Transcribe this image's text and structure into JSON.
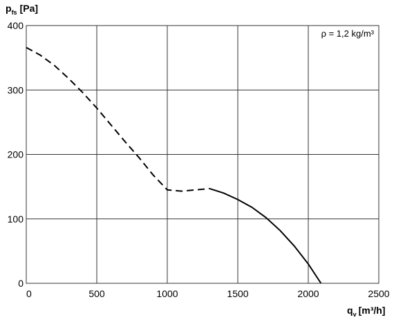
{
  "chart_data": {
    "type": "line",
    "y_label": {
      "base": "p",
      "sub": "fs",
      "unit": "[Pa]"
    },
    "x_label": {
      "base": "q",
      "sub": "v",
      "unit": "[m³/h]"
    },
    "annotation": "ρ = 1,2 kg/m³",
    "xlim": [
      0,
      2500
    ],
    "xticks": [
      0,
      500,
      1000,
      1500,
      2000,
      2500
    ],
    "ylim": [
      0,
      400
    ],
    "yticks": [
      0,
      100,
      200,
      300,
      400
    ],
    "grid": true,
    "series": [
      {
        "color": "#000000",
        "dashed": true,
        "x": [
          0,
          100,
          200,
          300,
          400,
          500,
          600,
          700,
          800,
          900,
          1000,
          1100,
          1200,
          1300
        ],
        "values": [
          366,
          354,
          338,
          318,
          296,
          272,
          246,
          220,
          195,
          168,
          145,
          143,
          145,
          147
        ]
      },
      {
        "color": "#000000",
        "dashed": false,
        "x": [
          1300,
          1400,
          1500,
          1600,
          1700,
          1800,
          1900,
          2000,
          2090
        ],
        "values": [
          147,
          140,
          130,
          118,
          102,
          82,
          58,
          30,
          0
        ]
      }
    ]
  }
}
